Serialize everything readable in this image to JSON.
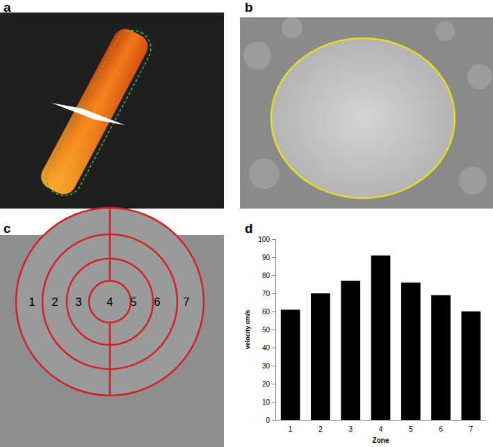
{
  "panel_labels": [
    "a",
    "b",
    "c",
    "d"
  ],
  "zone_diagram": {
    "labels": [
      "1",
      "2",
      "3",
      "4",
      "5",
      "6",
      "7"
    ]
  },
  "chart_data": {
    "type": "bar",
    "x_label": "Zone",
    "y_label": "velocity cm/s",
    "categories": [
      "1",
      "2",
      "3",
      "4",
      "5",
      "6",
      "7"
    ],
    "values": [
      61,
      70,
      77,
      91,
      76,
      69,
      60
    ],
    "color": "#000000",
    "ylim": [
      0,
      100
    ],
    "yticks": [
      0,
      10,
      20,
      30,
      40,
      50,
      60,
      70,
      80,
      90,
      100
    ],
    "grid": false
  }
}
